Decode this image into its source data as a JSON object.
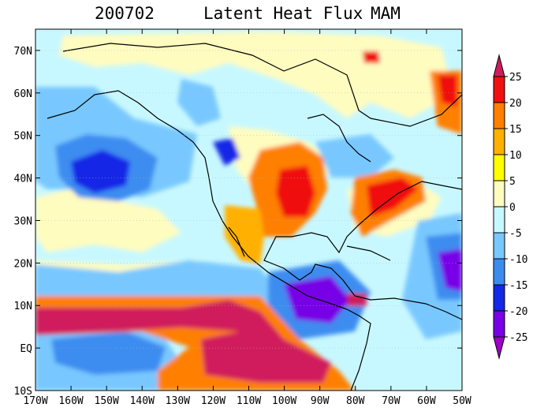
{
  "title": {
    "left": "200702",
    "center": "Latent Heat Flux",
    "right": "MAM"
  },
  "map": {
    "lon_range": [
      -170,
      -50
    ],
    "lat_range": [
      -10,
      75
    ],
    "x_ticks": [
      "170W",
      "160W",
      "150W",
      "140W",
      "130W",
      "120W",
      "110W",
      "100W",
      "90W",
      "80W",
      "70W",
      "60W",
      "50W"
    ],
    "y_ticks": [
      "70N",
      "60N",
      "50N",
      "40N",
      "30N",
      "20N",
      "10N",
      "EQ",
      "10S"
    ]
  },
  "colorbar": {
    "labels": [
      "25",
      "20",
      "15",
      "10",
      "5",
      "0",
      "-5",
      "-10",
      "-15",
      "-20",
      "-25"
    ],
    "colors": [
      "#d01c5c",
      "#f01010",
      "#ff7f00",
      "#ffb000",
      "#ffff00",
      "#fffcc0",
      "#c8f8ff",
      "#78c8ff",
      "#3c8cf0",
      "#1428e6",
      "#7800e6",
      "#a000c8"
    ]
  },
  "colors": {
    "background_field": "#c8f8ff",
    "coastline": "#000000"
  }
}
